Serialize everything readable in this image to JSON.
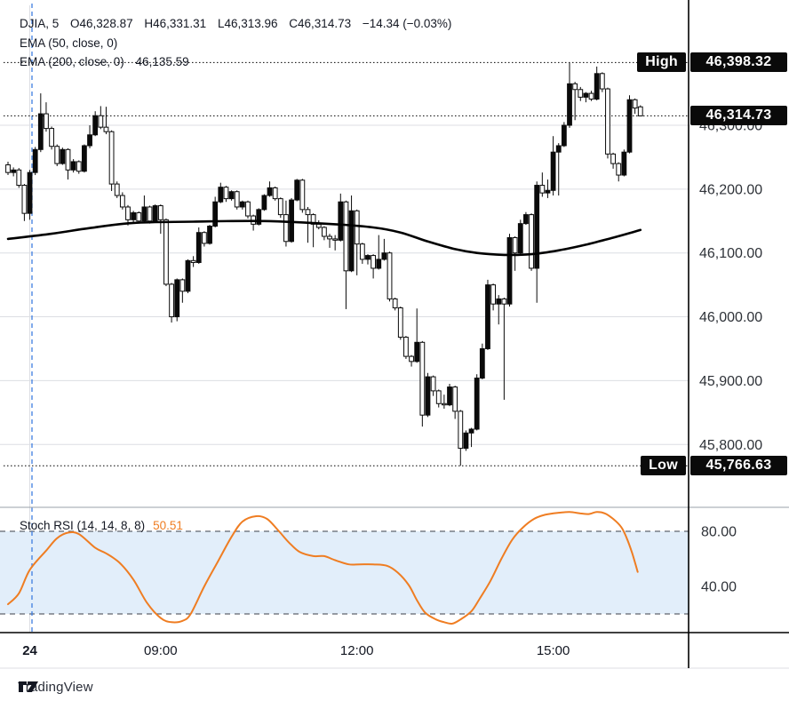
{
  "header": {
    "line1": {
      "symbol_interval": "DJIA, 5",
      "open": "O46,328.87",
      "high": "H46,331.31",
      "low": "L46,313.96",
      "close": "C46,314.73",
      "change": "−14.34 (−0.03%)"
    },
    "ema50_label": "EMA (50, close, 0)",
    "ema200_label": "EMA (200, close, 0)",
    "ema200_value": "46,135.59"
  },
  "stoch_legend": {
    "label": "Stoch RSI (14, 14, 8, 8)",
    "value": "50.51"
  },
  "tags": {
    "high_label": "High",
    "high_value": "46,398.32",
    "last_value": "46,314.73",
    "low_label": "Low",
    "low_value": "45,766.63"
  },
  "price_axis": {
    "ticks": [
      {
        "label": "46,300.00",
        "price": 46300
      },
      {
        "label": "46,200.00",
        "price": 46200
      },
      {
        "label": "46,100.00",
        "price": 46100
      },
      {
        "label": "46,000.00",
        "price": 46000
      },
      {
        "label": "45,900.00",
        "price": 45900
      },
      {
        "label": "45,800.00",
        "price": 45800
      }
    ]
  },
  "stoch_axis": {
    "ticks": [
      {
        "label": "80.00",
        "value": 80
      },
      {
        "label": "40.00",
        "value": 40
      }
    ]
  },
  "time_axis": {
    "ticks": [
      {
        "label": "24",
        "i": 4,
        "bold": true
      },
      {
        "label": "09:00",
        "i": 28,
        "bold": false
      },
      {
        "label": "12:00",
        "i": 64,
        "bold": false
      },
      {
        "label": "15:00",
        "i": 100,
        "bold": false
      }
    ],
    "session_break_i": 4.4
  },
  "branding": {
    "logo_text": "TradingView"
  },
  "colors": {
    "up_fill": "#0a0a0a",
    "down_fill": "#ffffff",
    "candle_border": "#0a0a0a",
    "ema": "#000000",
    "stoch_line": "#ef7d22",
    "band_fill": "#e2eefa",
    "band_border": "#5f646e",
    "grid": "#dcdee3",
    "session_line": "#3d7de0",
    "axis_line": "#000000",
    "pane_border": "#9aa0a8",
    "tag_bg": "#0a0a0a",
    "tag_text": "#ffffff",
    "text": "#131722",
    "axis_text": "#2e3238"
  },
  "chart_data": [
    {
      "type": "candlestick",
      "title": "DJIA, 5",
      "symbol": "DJIA",
      "interval_minutes": 5,
      "last_ohlc": {
        "open": 46328.87,
        "high": 46331.31,
        "low": 46313.96,
        "close": 46314.73,
        "change": -14.34,
        "change_pct": -0.03
      },
      "session_high": 46398.32,
      "session_low": 45766.63,
      "last_price": 46314.73,
      "y_ticks": [
        46300,
        46200,
        46100,
        46000,
        45900,
        45800
      ],
      "x_labels": [
        "24",
        "09:00",
        "12:00",
        "15:00"
      ],
      "candles": [
        [
          46238,
          46243,
          46222,
          46226
        ],
        [
          46226,
          46234,
          46220,
          46230
        ],
        [
          46230,
          46233,
          46202,
          46206
        ],
        [
          46206,
          46208,
          46150,
          46162
        ],
        [
          46162,
          46230,
          46152,
          46226
        ],
        [
          46226,
          46266,
          46222,
          46262
        ],
        [
          46262,
          46350,
          46258,
          46318
        ],
        [
          46318,
          46336,
          46290,
          46295
        ],
        [
          46295,
          46298,
          46262,
          46267
        ],
        [
          46267,
          46270,
          46236,
          46240
        ],
        [
          46240,
          46265,
          46238,
          46262
        ],
        [
          46262,
          46264,
          46215,
          46230
        ],
        [
          46230,
          46247,
          46226,
          46243
        ],
        [
          46243,
          46245,
          46224,
          46228
        ],
        [
          46228,
          46270,
          46226,
          46268
        ],
        [
          46268,
          46300,
          46264,
          46285
        ],
        [
          46285,
          46322,
          46283,
          46315
        ],
        [
          46315,
          46330,
          46294,
          46297
        ],
        [
          46297,
          46329,
          46286,
          46290
        ],
        [
          46290,
          46292,
          46197,
          46208
        ],
        [
          46208,
          46212,
          46186,
          46190
        ],
        [
          46190,
          46195,
          46168,
          46172
        ],
        [
          46172,
          46175,
          46143,
          46152
        ],
        [
          46152,
          46166,
          46148,
          46163
        ],
        [
          46163,
          46165,
          46146,
          46150
        ],
        [
          46150,
          46190,
          46148,
          46172
        ],
        [
          46172,
          46174,
          46146,
          46150
        ],
        [
          46150,
          46176,
          46148,
          46174
        ],
        [
          46174,
          46176,
          46130,
          46152
        ],
        [
          46152,
          46154,
          46048,
          46051
        ],
        [
          46051,
          46053,
          45991,
          46000
        ],
        [
          46000,
          46060,
          45993,
          46058
        ],
        [
          46058,
          46060,
          46022,
          46040
        ],
        [
          46040,
          46090,
          46037,
          46088
        ],
        [
          46088,
          46095,
          46078,
          46085
        ],
        [
          46085,
          46140,
          46083,
          46132
        ],
        [
          46132,
          46134,
          46110,
          46115
        ],
        [
          46115,
          46144,
          46113,
          46142
        ],
        [
          46142,
          46188,
          46140,
          46180
        ],
        [
          46180,
          46210,
          46178,
          46203
        ],
        [
          46203,
          46205,
          46180,
          46185
        ],
        [
          46185,
          46198,
          46182,
          46196
        ],
        [
          46196,
          46198,
          46168,
          46172
        ],
        [
          46172,
          46182,
          46168,
          46180
        ],
        [
          46180,
          46182,
          46154,
          46158
        ],
        [
          46158,
          46160,
          46135,
          46145
        ],
        [
          46145,
          46170,
          46143,
          46168
        ],
        [
          46168,
          46192,
          46166,
          46190
        ],
        [
          46190,
          46212,
          46188,
          46202
        ],
        [
          46202,
          46204,
          46182,
          46185
        ],
        [
          46185,
          46187,
          46155,
          46160
        ],
        [
          46160,
          46182,
          46110,
          46118
        ],
        [
          46118,
          46186,
          46116,
          46183
        ],
        [
          46183,
          46216,
          46181,
          46214
        ],
        [
          46214,
          46216,
          46163,
          46168
        ],
        [
          46168,
          46172,
          46116,
          46160
        ],
        [
          46160,
          46162,
          46109,
          46145
        ],
        [
          46145,
          46151,
          46137,
          46140
        ],
        [
          46140,
          46142,
          46120,
          46126
        ],
        [
          46126,
          46130,
          46108,
          46122
        ],
        [
          46122,
          46128,
          46104,
          46120
        ],
        [
          46120,
          46193,
          46118,
          46180
        ],
        [
          46180,
          46182,
          46012,
          46072
        ],
        [
          46072,
          46190,
          46070,
          46166
        ],
        [
          46166,
          46168,
          46065,
          46114
        ],
        [
          46114,
          46116,
          46083,
          46090
        ],
        [
          46090,
          46098,
          46082,
          46096
        ],
        [
          46096,
          46098,
          46060,
          46076
        ],
        [
          46076,
          46128,
          46074,
          46090
        ],
        [
          46090,
          46122,
          46088,
          46100
        ],
        [
          46100,
          46102,
          46024,
          46028
        ],
        [
          46028,
          46030,
          46010,
          46014
        ],
        [
          46014,
          46016,
          45964,
          45968
        ],
        [
          45968,
          45970,
          45934,
          45938
        ],
        [
          45938,
          45940,
          45922,
          45930
        ],
        [
          45930,
          46013,
          45928,
          45960
        ],
        [
          45960,
          45962,
          45828,
          45846
        ],
        [
          45846,
          45912,
          45843,
          45906
        ],
        [
          45906,
          45908,
          45876,
          45884
        ],
        [
          45884,
          45886,
          45858,
          45864
        ],
        [
          45864,
          45878,
          45856,
          45862
        ],
        [
          45862,
          45895,
          45860,
          45890
        ],
        [
          45890,
          45892,
          45840,
          45852
        ],
        [
          45852,
          45854,
          45766.63,
          45794
        ],
        [
          45794,
          45822,
          45790,
          45818
        ],
        [
          45818,
          45826,
          45796,
          45824
        ],
        [
          45824,
          45910,
          45822,
          45904
        ],
        [
          45904,
          45958,
          45902,
          45950
        ],
        [
          45950,
          46058,
          45948,
          46050
        ],
        [
          46050,
          46052,
          46010,
          46020
        ],
        [
          46020,
          46034,
          45988,
          46028
        ],
        [
          46028,
          46030,
          45870,
          46020
        ],
        [
          46020,
          46130,
          46016,
          46124
        ],
        [
          46124,
          46126,
          46072,
          46100
        ],
        [
          46100,
          46152,
          46098,
          46146
        ],
        [
          46146,
          46164,
          46144,
          46160
        ],
        [
          46160,
          46162,
          46072,
          46076
        ],
        [
          46076,
          46212,
          46022,
          46206
        ],
        [
          46206,
          46226,
          46188,
          46194
        ],
        [
          46194,
          46215,
          46186,
          46198
        ],
        [
          46198,
          46283,
          46190,
          46258
        ],
        [
          46258,
          46272,
          46190,
          46268
        ],
        [
          46268,
          46305,
          46266,
          46300
        ],
        [
          46300,
          46398.32,
          46296,
          46365
        ],
        [
          46365,
          46368,
          46308,
          46356
        ],
        [
          46356,
          46360,
          46338,
          46344
        ],
        [
          46344,
          46352,
          46336,
          46350
        ],
        [
          46350,
          46354,
          46338,
          46341
        ],
        [
          46341,
          46392,
          46339,
          46381
        ],
        [
          46381,
          46383,
          46352,
          46357
        ],
        [
          46357,
          46359,
          46248,
          46255
        ],
        [
          46255,
          46257,
          46232,
          46240
        ],
        [
          46240,
          46242,
          46212,
          46222
        ],
        [
          46222,
          46262,
          46220,
          46258
        ],
        [
          46258,
          46347,
          46256,
          46340
        ],
        [
          46340,
          46342,
          46318,
          46327
        ],
        [
          46328.87,
          46331.31,
          46313.96,
          46314.73
        ]
      ]
    },
    {
      "type": "line",
      "name": "EMA 200",
      "last_value": 46135.59,
      "points": [
        [
          0,
          46122
        ],
        [
          8,
          46130
        ],
        [
          15,
          46139
        ],
        [
          23,
          46147
        ],
        [
          34,
          46149
        ],
        [
          47,
          46150
        ],
        [
          60,
          46145
        ],
        [
          67,
          46140
        ],
        [
          72,
          46132
        ],
        [
          77,
          46118
        ],
        [
          82,
          46106
        ],
        [
          86,
          46100
        ],
        [
          91,
          46097
        ],
        [
          96,
          46098
        ],
        [
          101,
          46104
        ],
        [
          106,
          46113
        ],
        [
          111,
          46124
        ],
        [
          114,
          46131
        ],
        [
          116,
          46136
        ]
      ]
    },
    {
      "type": "line",
      "name": "Stoch RSI",
      "params": [
        14,
        14,
        8,
        8
      ],
      "last_value": 50.51,
      "range": [
        0,
        100
      ],
      "bands": [
        80,
        20
      ],
      "points": [
        [
          0,
          27
        ],
        [
          2,
          35
        ],
        [
          4,
          52
        ],
        [
          7,
          66
        ],
        [
          9,
          75
        ],
        [
          11,
          79
        ],
        [
          13,
          78
        ],
        [
          16,
          68
        ],
        [
          18,
          64
        ],
        [
          20.5,
          57
        ],
        [
          23,
          45
        ],
        [
          25.5,
          28
        ],
        [
          28,
          17
        ],
        [
          30,
          14
        ],
        [
          32,
          15
        ],
        [
          33.5,
          20
        ],
        [
          36,
          40
        ],
        [
          38.5,
          58
        ],
        [
          41,
          76
        ],
        [
          43,
          87
        ],
        [
          45.5,
          91
        ],
        [
          47.5,
          89
        ],
        [
          49.5,
          81
        ],
        [
          51.5,
          72
        ],
        [
          53.5,
          65
        ],
        [
          56,
          62
        ],
        [
          58,
          62
        ],
        [
          60,
          59
        ],
        [
          62.5,
          56
        ],
        [
          64.5,
          56
        ],
        [
          67,
          56
        ],
        [
          69.5,
          55
        ],
        [
          71.5,
          50
        ],
        [
          73.5,
          41
        ],
        [
          75,
          30
        ],
        [
          76.5,
          21
        ],
        [
          78.5,
          16
        ],
        [
          80,
          14
        ],
        [
          81.5,
          13
        ],
        [
          83,
          16
        ],
        [
          85,
          22
        ],
        [
          86.5,
          31
        ],
        [
          88.5,
          44
        ],
        [
          90.5,
          60
        ],
        [
          92.5,
          74
        ],
        [
          94.5,
          83
        ],
        [
          96.5,
          89
        ],
        [
          98.5,
          92
        ],
        [
          101,
          93.5
        ],
        [
          103,
          94
        ],
        [
          105,
          93
        ],
        [
          106.5,
          92.5
        ],
        [
          108,
          94
        ],
        [
          109.5,
          93
        ],
        [
          111,
          89
        ],
        [
          112.5,
          83
        ],
        [
          113.5,
          75
        ],
        [
          114.5,
          64
        ],
        [
          115.5,
          50.5
        ]
      ]
    }
  ]
}
